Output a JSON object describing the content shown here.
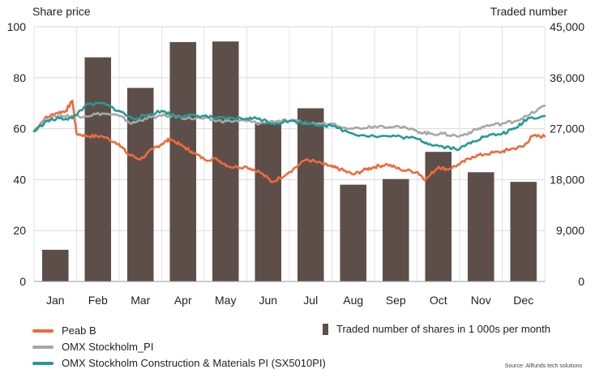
{
  "chart_data": {
    "type": "bar+line",
    "left_axis": {
      "title": "Share price",
      "ylim": [
        0,
        100
      ],
      "ticks": [
        0,
        20,
        40,
        60,
        80,
        100
      ]
    },
    "right_axis": {
      "title": "Traded number",
      "ylim": [
        0,
        45000
      ],
      "ticks": [
        "0",
        "9,000",
        "18,000",
        "27,000",
        "36,000",
        "45,000"
      ],
      "tick_values": [
        0,
        9000,
        18000,
        27000,
        36000,
        45000
      ]
    },
    "categories": [
      "Jan",
      "Feb",
      "Mar",
      "Apr",
      "May",
      "Jun",
      "Jul",
      "Aug",
      "Sep",
      "Oct",
      "Nov",
      "Dec"
    ],
    "bars": {
      "name": "Traded number of shares in 1 000s per month",
      "axis": "right",
      "color": "#5e4e49",
      "values": [
        5600,
        39600,
        34200,
        42300,
        42400,
        28100,
        30600,
        17100,
        18100,
        22900,
        19300,
        17600
      ]
    },
    "series": [
      {
        "name": "Peab B",
        "axis": "left",
        "color": "#ef6a3b",
        "x": [
          0.0,
          0.25,
          0.5,
          0.75,
          0.9,
          1.0,
          1.3,
          1.6,
          2.0,
          2.2,
          2.5,
          2.8,
          3.0,
          3.2,
          3.5,
          3.7,
          4.0,
          4.3,
          4.6,
          5.0,
          5.3,
          5.6,
          6.0,
          6.4,
          6.8,
          7.0,
          7.2,
          7.5,
          7.8,
          8.0,
          8.3,
          8.6,
          9.0,
          9.2,
          9.5,
          9.7,
          10.0,
          10.3,
          10.6,
          11.0,
          11.2,
          11.5,
          11.7,
          12.0
        ],
        "values": [
          59,
          64,
          66,
          67,
          71,
          58,
          57,
          57,
          54,
          50,
          48,
          52,
          54,
          56,
          53,
          51,
          48,
          48,
          45,
          45,
          43,
          39,
          43,
          48,
          46,
          45,
          44,
          42,
          44,
          45,
          46,
          44,
          43,
          40,
          45,
          44,
          46,
          49,
          50,
          51,
          52,
          53,
          57,
          57
        ]
      },
      {
        "name": "OMX Stockholm_PI",
        "axis": "left",
        "color": "#a7a7a7",
        "x": [
          0.0,
          0.3,
          0.6,
          0.9,
          1.2,
          1.6,
          2.0,
          2.3,
          2.6,
          3.0,
          3.3,
          3.6,
          4.0,
          4.3,
          4.6,
          5.0,
          5.3,
          5.6,
          6.0,
          6.5,
          7.0,
          7.5,
          8.0,
          8.5,
          9.0,
          9.3,
          9.6,
          10.0,
          10.3,
          10.6,
          11.0,
          11.3,
          11.6,
          12.0
        ],
        "values": [
          59,
          64,
          65,
          65,
          65,
          66,
          65,
          62,
          64,
          65,
          65,
          64,
          64,
          63,
          63,
          63,
          62,
          63,
          63,
          62,
          62,
          60,
          61,
          61,
          59,
          58,
          58,
          57,
          59,
          61,
          62,
          63,
          65,
          69
        ]
      },
      {
        "name": "OMX Stockholm Construction & Materials PI (SX5010PI)",
        "axis": "left",
        "color": "#259a96",
        "x": [
          0.0,
          0.3,
          0.6,
          0.9,
          1.2,
          1.6,
          2.0,
          2.3,
          2.6,
          3.0,
          3.3,
          3.6,
          4.0,
          4.3,
          4.6,
          5.0,
          5.3,
          5.6,
          6.0,
          6.5,
          7.0,
          7.5,
          8.0,
          8.5,
          9.0,
          9.3,
          9.6,
          10.0,
          10.3,
          10.6,
          11.0,
          11.3,
          11.6,
          12.0
        ],
        "values": [
          59,
          63,
          64,
          64,
          69,
          70,
          67,
          64,
          65,
          67,
          65,
          65,
          65,
          64,
          64,
          64,
          64,
          62,
          63,
          62,
          61,
          58,
          57,
          57,
          56,
          54,
          53,
          52,
          55,
          57,
          58,
          60,
          64,
          65
        ]
      }
    ],
    "legend": [
      "Peab B",
      "OMX Stockholm_PI",
      "OMX Stockholm Construction & Materials PI (SX5010PI)",
      "Traded number of shares in 1 000s per month"
    ],
    "legend_placement": "bottom",
    "grid": true,
    "source": "Source: Allfunds tech solutions"
  }
}
